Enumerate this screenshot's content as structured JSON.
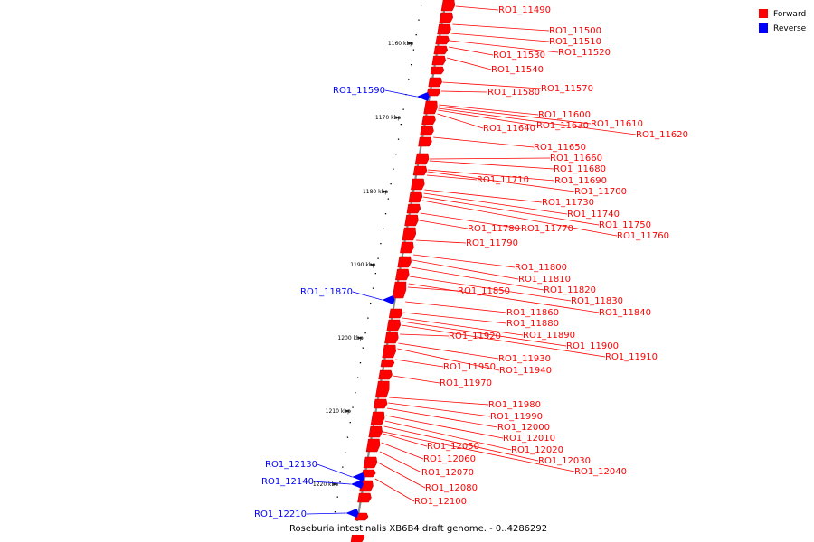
{
  "legend": [
    {
      "label": "Forward",
      "color": "#ff0000"
    },
    {
      "label": "Reverse",
      "color": "#0000ff"
    }
  ],
  "caption": "Roseburia intestinalis XB6B4 draft genome. - 0..4286292",
  "colors": {
    "forward": "#ff0000",
    "reverse": "#0000ff",
    "backbone": "#888888"
  },
  "ticks": [
    "1160 kbp",
    "1170 kbp",
    "1180 kbp",
    "1190 kbp",
    "1200 kbp",
    "1210 kbp",
    "1220 kbp"
  ],
  "forward_genes": [
    "RO1_11490",
    "RO1_11500",
    "RO1_11510",
    "RO1_11520",
    "RO1_11530",
    "RO1_11540",
    "RO1_11570",
    "RO1_11580",
    "RO1_11600",
    "RO1_11610",
    "RO1_11620",
    "RO1_11630",
    "RO1_11640",
    "RO1_11650",
    "RO1_11660",
    "RO1_11680",
    "RO1_11690",
    "RO1_11700",
    "RO1_11710",
    "RO1_11730",
    "RO1_11740",
    "RO1_11750",
    "RO1_11760",
    "RO1_11770",
    "RO1_11780",
    "RO1_11790",
    "RO1_11800",
    "RO1_11810",
    "RO1_11820",
    "RO1_11830",
    "RO1_11840",
    "RO1_11850",
    "RO1_11860",
    "RO1_11880",
    "RO1_11890",
    "RO1_11900",
    "RO1_11910",
    "RO1_11920",
    "RO1_11930",
    "RO1_11940",
    "RO1_11950",
    "RO1_11970",
    "RO1_11980",
    "RO1_11990",
    "RO1_12000",
    "RO1_12010",
    "RO1_12020",
    "RO1_12030",
    "RO1_12040",
    "RO1_12050",
    "RO1_12060",
    "RO1_12070",
    "RO1_12080",
    "RO1_12100"
  ],
  "reverse_genes": [
    "RO1_11590",
    "RO1_11870",
    "RO1_12130",
    "RO1_12140",
    "RO1_12210"
  ]
}
